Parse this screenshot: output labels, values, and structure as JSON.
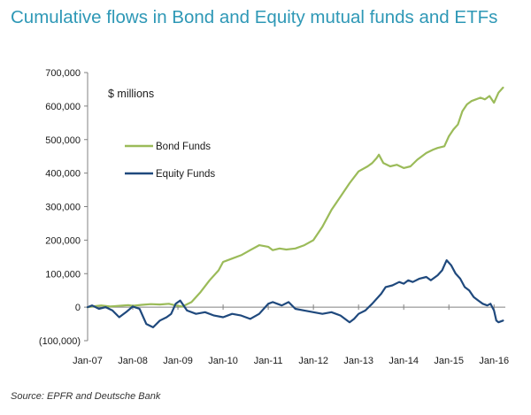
{
  "chart_data": {
    "type": "line",
    "title": "Cumulative flows in Bond and Equity mutual funds and ETFs",
    "unit_label": "$ millions",
    "source": "Source: EPFR and Deutsche Bank",
    "xlabel": "",
    "ylabel": "",
    "xlim": [
      2007.0,
      2016.25
    ],
    "ylim": [
      -100000,
      700000
    ],
    "y_ticks": [
      -100000,
      0,
      100000,
      200000,
      300000,
      400000,
      500000,
      600000,
      700000
    ],
    "y_tick_labels": [
      "(100,000)",
      "0",
      "100,000",
      "200,000",
      "300,000",
      "400,000",
      "500,000",
      "600,000",
      "700,000"
    ],
    "x_ticks": [
      2007,
      2008,
      2009,
      2010,
      2011,
      2012,
      2013,
      2014,
      2015,
      2016
    ],
    "x_tick_labels": [
      "Jan-07",
      "Jan-08",
      "Jan-09",
      "Jan-10",
      "Jan-11",
      "Jan-12",
      "Jan-13",
      "Jan-14",
      "Jan-15",
      "Jan-16"
    ],
    "grid": false,
    "legend": "center-left",
    "series": [
      {
        "name": "Bond Funds",
        "color": "#9bbb59",
        "x": [
          2007.0,
          2007.1,
          2007.3,
          2007.5,
          2007.7,
          2007.9,
          2008.0,
          2008.2,
          2008.4,
          2008.6,
          2008.8,
          2008.95,
          2009.1,
          2009.3,
          2009.5,
          2009.7,
          2009.9,
          2010.0,
          2010.2,
          2010.4,
          2010.6,
          2010.8,
          2011.0,
          2011.1,
          2011.25,
          2011.4,
          2011.6,
          2011.8,
          2012.0,
          2012.2,
          2012.4,
          2012.6,
          2012.8,
          2013.0,
          2013.2,
          2013.3,
          2013.4,
          2013.45,
          2013.55,
          2013.7,
          2013.85,
          2014.0,
          2014.15,
          2014.3,
          2014.5,
          2014.65,
          2014.75,
          2014.9,
          2015.0,
          2015.1,
          2015.2,
          2015.3,
          2015.4,
          2015.5,
          2015.6,
          2015.7,
          2015.8,
          2015.9,
          2016.0,
          2016.1,
          2016.2
        ],
        "values": [
          0,
          2000,
          5000,
          2000,
          4000,
          6000,
          4000,
          7000,
          9000,
          8000,
          10000,
          5000,
          2000,
          15000,
          45000,
          80000,
          110000,
          135000,
          145000,
          155000,
          170000,
          185000,
          180000,
          170000,
          175000,
          172000,
          175000,
          185000,
          200000,
          240000,
          290000,
          330000,
          370000,
          405000,
          420000,
          430000,
          445000,
          455000,
          430000,
          420000,
          425000,
          415000,
          420000,
          440000,
          460000,
          470000,
          475000,
          480000,
          510000,
          530000,
          545000,
          585000,
          605000,
          615000,
          620000,
          625000,
          620000,
          630000,
          610000,
          640000,
          655000
        ]
      },
      {
        "name": "Equity Funds",
        "color": "#1f497d",
        "x": [
          2007.0,
          2007.1,
          2007.25,
          2007.4,
          2007.55,
          2007.7,
          2007.85,
          2008.0,
          2008.15,
          2008.3,
          2008.45,
          2008.6,
          2008.75,
          2008.85,
          2008.95,
          2009.05,
          2009.2,
          2009.4,
          2009.6,
          2009.8,
          2010.0,
          2010.2,
          2010.4,
          2010.6,
          2010.8,
          2010.9,
          2011.0,
          2011.1,
          2011.2,
          2011.3,
          2011.45,
          2011.6,
          2011.8,
          2012.0,
          2012.2,
          2012.4,
          2012.6,
          2012.8,
          2012.9,
          2013.0,
          2013.15,
          2013.3,
          2013.5,
          2013.6,
          2013.75,
          2013.9,
          2014.0,
          2014.1,
          2014.2,
          2014.35,
          2014.5,
          2014.6,
          2014.75,
          2014.85,
          2014.9,
          2014.95,
          2015.05,
          2015.15,
          2015.25,
          2015.35,
          2015.45,
          2015.55,
          2015.65,
          2015.75,
          2015.85,
          2015.92,
          2016.0,
          2016.05,
          2016.1,
          2016.2
        ],
        "values": [
          0,
          5000,
          -5000,
          0,
          -10000,
          -30000,
          -15000,
          2000,
          -5000,
          -50000,
          -60000,
          -40000,
          -30000,
          -20000,
          10000,
          20000,
          -10000,
          -20000,
          -15000,
          -25000,
          -30000,
          -20000,
          -25000,
          -35000,
          -20000,
          -5000,
          10000,
          15000,
          10000,
          5000,
          15000,
          -5000,
          -10000,
          -15000,
          -20000,
          -15000,
          -25000,
          -45000,
          -35000,
          -20000,
          -10000,
          10000,
          40000,
          60000,
          65000,
          75000,
          70000,
          80000,
          75000,
          85000,
          90000,
          80000,
          95000,
          110000,
          125000,
          140000,
          125000,
          100000,
          85000,
          60000,
          50000,
          30000,
          20000,
          10000,
          5000,
          10000,
          -10000,
          -40000,
          -45000,
          -40000
        ]
      }
    ]
  }
}
